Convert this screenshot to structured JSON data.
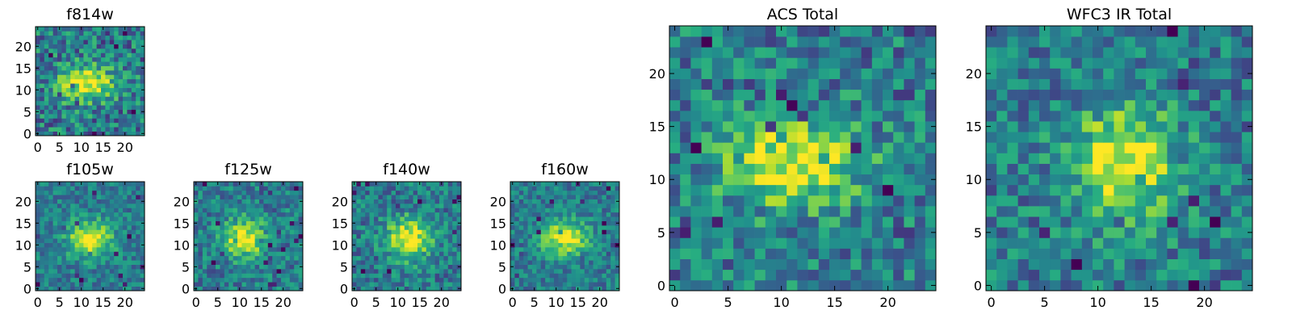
{
  "chart_data": [
    {
      "type": "heatmap",
      "title": "f814w",
      "xlabel": "",
      "ylabel": "",
      "xlim": [
        -0.5,
        24.5
      ],
      "ylim": [
        -0.5,
        24.5
      ],
      "xticks": [
        0,
        5,
        10,
        15,
        20
      ],
      "yticks": [
        0,
        5,
        10,
        15,
        20
      ],
      "grid_size": [
        25,
        25
      ],
      "colormap": "viridis",
      "peak_center": [
        11,
        11.5
      ],
      "peak_extent": [
        4.5,
        2.8
      ],
      "noise_level": 0.33
    },
    {
      "type": "heatmap",
      "title": "f105w",
      "xlabel": "",
      "ylabel": "",
      "xlim": [
        -0.5,
        24.5
      ],
      "ylim": [
        -0.5,
        24.5
      ],
      "xticks": [
        0,
        5,
        10,
        15,
        20
      ],
      "yticks": [
        0,
        5,
        10,
        15,
        20
      ],
      "grid_size": [
        25,
        25
      ],
      "colormap": "viridis",
      "peak_center": [
        12,
        11.5
      ],
      "peak_extent": [
        3.6,
        2.8
      ],
      "noise_level": 0.22
    },
    {
      "type": "heatmap",
      "title": "f125w",
      "xlabel": "",
      "ylabel": "",
      "xlim": [
        -0.5,
        24.5
      ],
      "ylim": [
        -0.5,
        24.5
      ],
      "xticks": [
        0,
        5,
        10,
        15,
        20
      ],
      "yticks": [
        0,
        5,
        10,
        15,
        20
      ],
      "grid_size": [
        25,
        25
      ],
      "colormap": "viridis",
      "peak_center": [
        11,
        11.5
      ],
      "peak_extent": [
        3.4,
        3.0
      ],
      "noise_level": 0.26
    },
    {
      "type": "heatmap",
      "title": "f140w",
      "xlabel": "",
      "ylabel": "",
      "xlim": [
        -0.5,
        24.5
      ],
      "ylim": [
        -0.5,
        24.5
      ],
      "xticks": [
        0,
        5,
        10,
        15,
        20
      ],
      "yticks": [
        0,
        5,
        10,
        15,
        20
      ],
      "grid_size": [
        25,
        25
      ],
      "colormap": "viridis",
      "peak_center": [
        12.5,
        11.5
      ],
      "peak_extent": [
        3.6,
        3.2
      ],
      "noise_level": 0.26
    },
    {
      "type": "heatmap",
      "title": "f160w",
      "xlabel": "",
      "ylabel": "",
      "xlim": [
        -0.5,
        24.5
      ],
      "ylim": [
        -0.5,
        24.5
      ],
      "xticks": [
        0,
        5,
        10,
        15,
        20
      ],
      "yticks": [
        0,
        5,
        10,
        15,
        20
      ],
      "grid_size": [
        25,
        25
      ],
      "colormap": "viridis",
      "peak_center": [
        12,
        11.5
      ],
      "peak_extent": [
        3.6,
        2.8
      ],
      "noise_level": 0.22
    },
    {
      "type": "heatmap",
      "title": "ACS Total",
      "xlabel": "",
      "ylabel": "",
      "xlim": [
        -0.5,
        24.5
      ],
      "ylim": [
        -0.5,
        24.5
      ],
      "xticks": [
        0,
        5,
        10,
        15,
        20
      ],
      "yticks": [
        0,
        5,
        10,
        15,
        20
      ],
      "grid_size": [
        25,
        25
      ],
      "colormap": "viridis",
      "peak_center": [
        11,
        11.5
      ],
      "peak_extent": [
        4.5,
        2.8
      ],
      "noise_level": 0.3
    },
    {
      "type": "heatmap",
      "title": "WFC3 IR Total",
      "xlabel": "",
      "ylabel": "",
      "xlim": [
        -0.5,
        24.5
      ],
      "ylim": [
        -0.5,
        24.5
      ],
      "xticks": [
        0,
        5,
        10,
        15,
        20
      ],
      "yticks": [
        0,
        5,
        10,
        15,
        20
      ],
      "grid_size": [
        25,
        25
      ],
      "colormap": "viridis",
      "peak_center": [
        12.5,
        11.5
      ],
      "peak_extent": [
        3.4,
        3.6
      ],
      "noise_level": 0.28
    }
  ]
}
